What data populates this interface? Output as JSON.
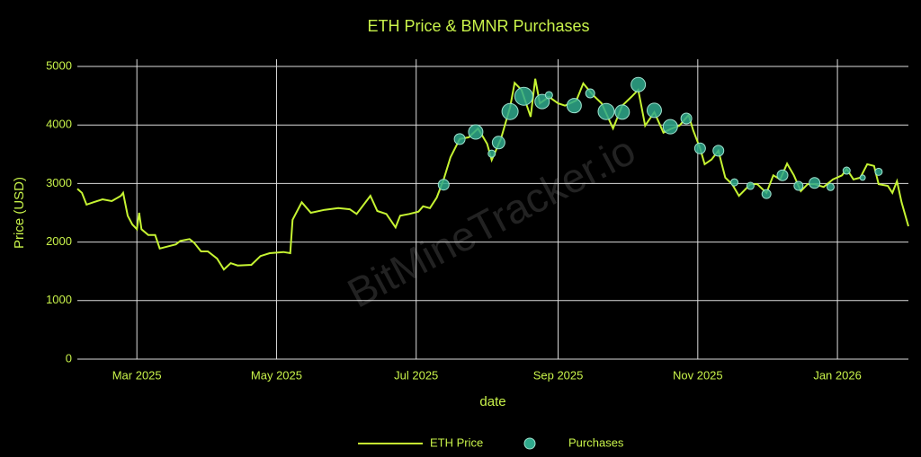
{
  "chart_data": {
    "type": "line",
    "title": "ETH Price & BMNR Purchases",
    "xlabel": "date",
    "ylabel": "Price (USD)",
    "watermark": "BitMineTracker.io",
    "grid": true,
    "legend": "bottom",
    "xlim": [
      "2025-02-03",
      "2026-02-01"
    ],
    "xticks": [
      {
        "value": "2025-03-01",
        "label": "Mar 2025"
      },
      {
        "value": "2025-05-01",
        "label": "May 2025"
      },
      {
        "value": "2025-07-01",
        "label": "Jul 2025"
      },
      {
        "value": "2025-09-01",
        "label": "Sep 2025"
      },
      {
        "value": "2025-11-01",
        "label": "Nov 2025"
      },
      {
        "value": "2026-01-01",
        "label": "Jan 2026"
      }
    ],
    "ylim": [
      0,
      5000
    ],
    "yticks": [
      0,
      1000,
      2000,
      3000,
      4000,
      5000
    ],
    "series": [
      {
        "name": "ETH Price",
        "type": "line",
        "color": "#c6f432",
        "x": [
          "2025-02-03",
          "2025-02-05",
          "2025-02-07",
          "2025-02-10",
          "2025-02-14",
          "2025-02-18",
          "2025-02-22",
          "2025-02-23",
          "2025-02-25",
          "2025-02-27",
          "2025-03-01",
          "2025-03-02",
          "2025-03-03",
          "2025-03-06",
          "2025-03-09",
          "2025-03-11",
          "2025-03-14",
          "2025-03-18",
          "2025-03-20",
          "2025-03-24",
          "2025-03-26",
          "2025-03-29",
          "2025-04-01",
          "2025-04-05",
          "2025-04-08",
          "2025-04-11",
          "2025-04-14",
          "2025-04-20",
          "2025-04-24",
          "2025-04-28",
          "2025-05-04",
          "2025-05-07",
          "2025-05-08",
          "2025-05-12",
          "2025-05-16",
          "2025-05-22",
          "2025-05-28",
          "2025-06-02",
          "2025-06-05",
          "2025-06-11",
          "2025-06-14",
          "2025-06-18",
          "2025-06-22",
          "2025-06-24",
          "2025-06-28",
          "2025-07-02",
          "2025-07-04",
          "2025-07-07",
          "2025-07-10",
          "2025-07-13",
          "2025-07-16",
          "2025-07-20",
          "2025-07-24",
          "2025-07-28",
          "2025-08-01",
          "2025-08-03",
          "2025-08-07",
          "2025-08-11",
          "2025-08-13",
          "2025-08-16",
          "2025-08-20",
          "2025-08-22",
          "2025-08-24",
          "2025-08-28",
          "2025-09-01",
          "2025-09-04",
          "2025-09-09",
          "2025-09-12",
          "2025-09-16",
          "2025-09-20",
          "2025-09-25",
          "2025-09-29",
          "2025-10-03",
          "2025-10-06",
          "2025-10-09",
          "2025-10-13",
          "2025-10-17",
          "2025-10-20",
          "2025-10-24",
          "2025-10-28",
          "2025-10-30",
          "2025-11-02",
          "2025-11-04",
          "2025-11-07",
          "2025-11-10",
          "2025-11-13",
          "2025-11-16",
          "2025-11-19",
          "2025-11-24",
          "2025-11-27",
          "2025-12-01",
          "2025-12-04",
          "2025-12-07",
          "2025-12-10",
          "2025-12-13",
          "2025-12-16",
          "2025-12-19",
          "2025-12-22",
          "2025-12-26",
          "2025-12-30",
          "2026-01-03",
          "2026-01-05",
          "2026-01-08",
          "2026-01-11",
          "2026-01-14",
          "2026-01-17",
          "2026-01-19",
          "2026-01-23",
          "2026-01-25",
          "2026-01-27",
          "2026-01-29",
          "2026-02-01"
        ],
        "values": [
          2910,
          2840,
          2640,
          2680,
          2730,
          2700,
          2790,
          2840,
          2450,
          2300,
          2220,
          2500,
          2220,
          2120,
          2120,
          1890,
          1920,
          1960,
          2020,
          2050,
          1990,
          1840,
          1840,
          1720,
          1530,
          1640,
          1600,
          1610,
          1760,
          1810,
          1830,
          1810,
          2380,
          2680,
          2500,
          2550,
          2580,
          2560,
          2480,
          2790,
          2530,
          2480,
          2250,
          2450,
          2480,
          2520,
          2610,
          2580,
          2760,
          3070,
          3450,
          3760,
          3790,
          3940,
          3680,
          3400,
          3760,
          4300,
          4720,
          4600,
          4140,
          4790,
          4370,
          4480,
          4370,
          4330,
          4420,
          4710,
          4520,
          4370,
          3940,
          4330,
          4480,
          4600,
          3990,
          4220,
          3870,
          3930,
          3990,
          4170,
          3910,
          3600,
          3330,
          3410,
          3560,
          3100,
          2990,
          2790,
          2990,
          2990,
          2840,
          3140,
          3070,
          3340,
          3140,
          2870,
          2990,
          2990,
          2940,
          3070,
          3140,
          3250,
          3070,
          3100,
          3330,
          3300,
          2990,
          2960,
          2840,
          3040,
          2680,
          2270
        ]
      },
      {
        "name": "Purchases",
        "type": "scatter",
        "color": "#2fa98c",
        "x": [
          "2025-07-13",
          "2025-07-20",
          "2025-07-27",
          "2025-08-03",
          "2025-08-06",
          "2025-08-11",
          "2025-08-17",
          "2025-08-25",
          "2025-08-28",
          "2025-09-08",
          "2025-09-15",
          "2025-09-22",
          "2025-09-29",
          "2025-10-06",
          "2025-10-13",
          "2025-10-20",
          "2025-10-27",
          "2025-11-02",
          "2025-11-10",
          "2025-11-17",
          "2025-11-24",
          "2025-12-01",
          "2025-12-08",
          "2025-12-15",
          "2025-12-22",
          "2025-12-29",
          "2026-01-05",
          "2026-01-12",
          "2026-01-19"
        ],
        "values": [
          2980,
          3760,
          3880,
          3510,
          3700,
          4230,
          4490,
          4400,
          4510,
          4330,
          4540,
          4230,
          4220,
          4690,
          4250,
          3970,
          4110,
          3600,
          3560,
          3020,
          2960,
          2820,
          3140,
          2960,
          3010,
          2940,
          3220,
          3100,
          3200
        ],
        "sizes": [
          6,
          6,
          8,
          4,
          7,
          9,
          10,
          8,
          4,
          8,
          5,
          9,
          8,
          8,
          8,
          8,
          6,
          6,
          6,
          4,
          4,
          5,
          6,
          5,
          6,
          4,
          4,
          3,
          4
        ]
      }
    ]
  }
}
